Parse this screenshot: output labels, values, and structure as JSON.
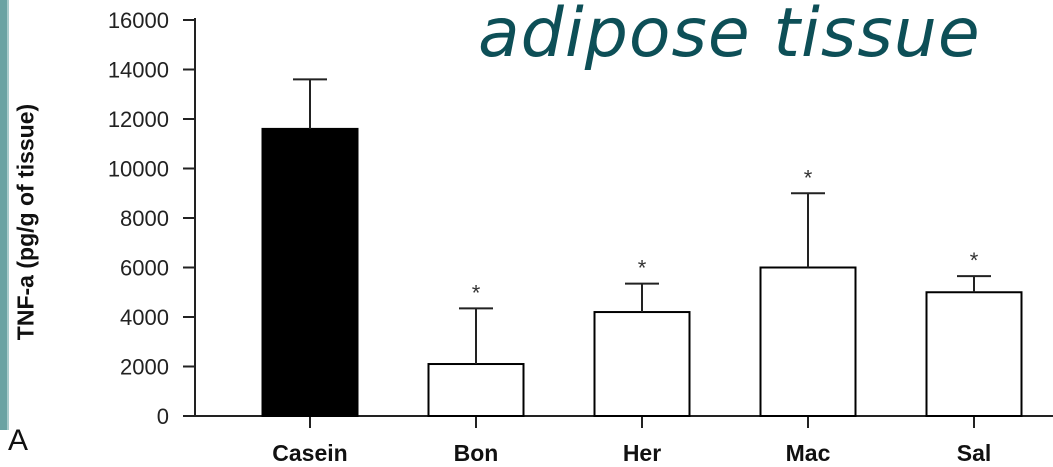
{
  "slide": {
    "title": "adipose tissue",
    "panel_letter": "A"
  },
  "chart_data": {
    "type": "bar",
    "title": "",
    "xlabel": "",
    "ylabel": "TNF-a (pg/g of tissue)",
    "ylim": [
      0,
      16000
    ],
    "yticks": [
      0,
      2000,
      4000,
      6000,
      8000,
      10000,
      12000,
      14000,
      16000
    ],
    "categories": [
      "Casein",
      "Bon",
      "Her",
      "Mac",
      "Sal"
    ],
    "values": [
      11600,
      2100,
      4200,
      6000,
      5000
    ],
    "error_upper": [
      13600,
      4350,
      5350,
      9000,
      5650
    ],
    "significance": [
      "",
      "*",
      "*",
      "*",
      "*"
    ],
    "fill_colors": [
      "#000000",
      "#ffffff",
      "#ffffff",
      "#ffffff",
      "#ffffff"
    ],
    "edge_color": "#000000",
    "grid": false,
    "legend": "none"
  }
}
